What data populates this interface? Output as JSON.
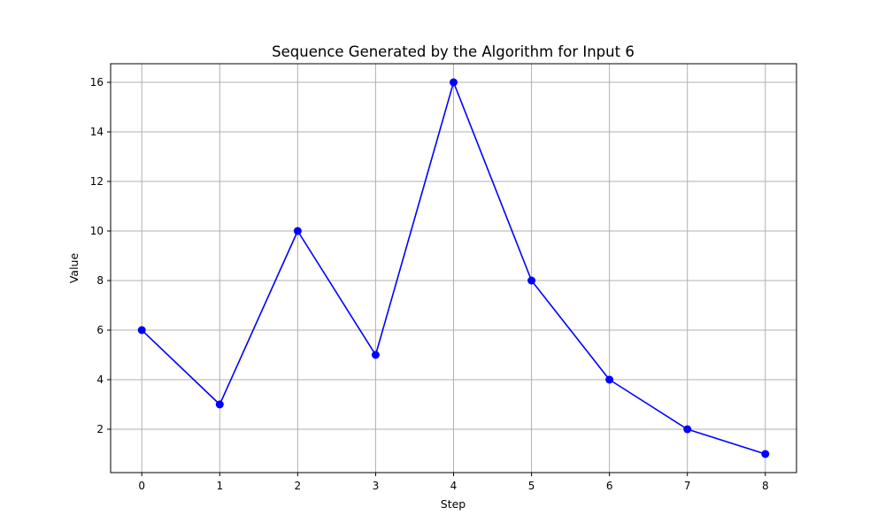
{
  "chart_data": {
    "type": "line",
    "title": "Sequence Generated by the Algorithm for Input 6",
    "xlabel": "Step",
    "ylabel": "Value",
    "x": [
      0,
      1,
      2,
      3,
      4,
      5,
      6,
      7,
      8
    ],
    "series": [
      {
        "values": [
          6,
          3,
          10,
          5,
          16,
          8,
          4,
          2,
          1
        ],
        "color": "#0000ff",
        "marker": "circle"
      }
    ],
    "xticks": [
      0,
      1,
      2,
      3,
      4,
      5,
      6,
      7,
      8
    ],
    "yticks": [
      2,
      4,
      6,
      8,
      10,
      12,
      14,
      16
    ],
    "xlim": [
      -0.4,
      8.4
    ],
    "ylim": [
      0.25,
      16.75
    ],
    "grid": true,
    "grid_color": "#b0b0b0"
  }
}
